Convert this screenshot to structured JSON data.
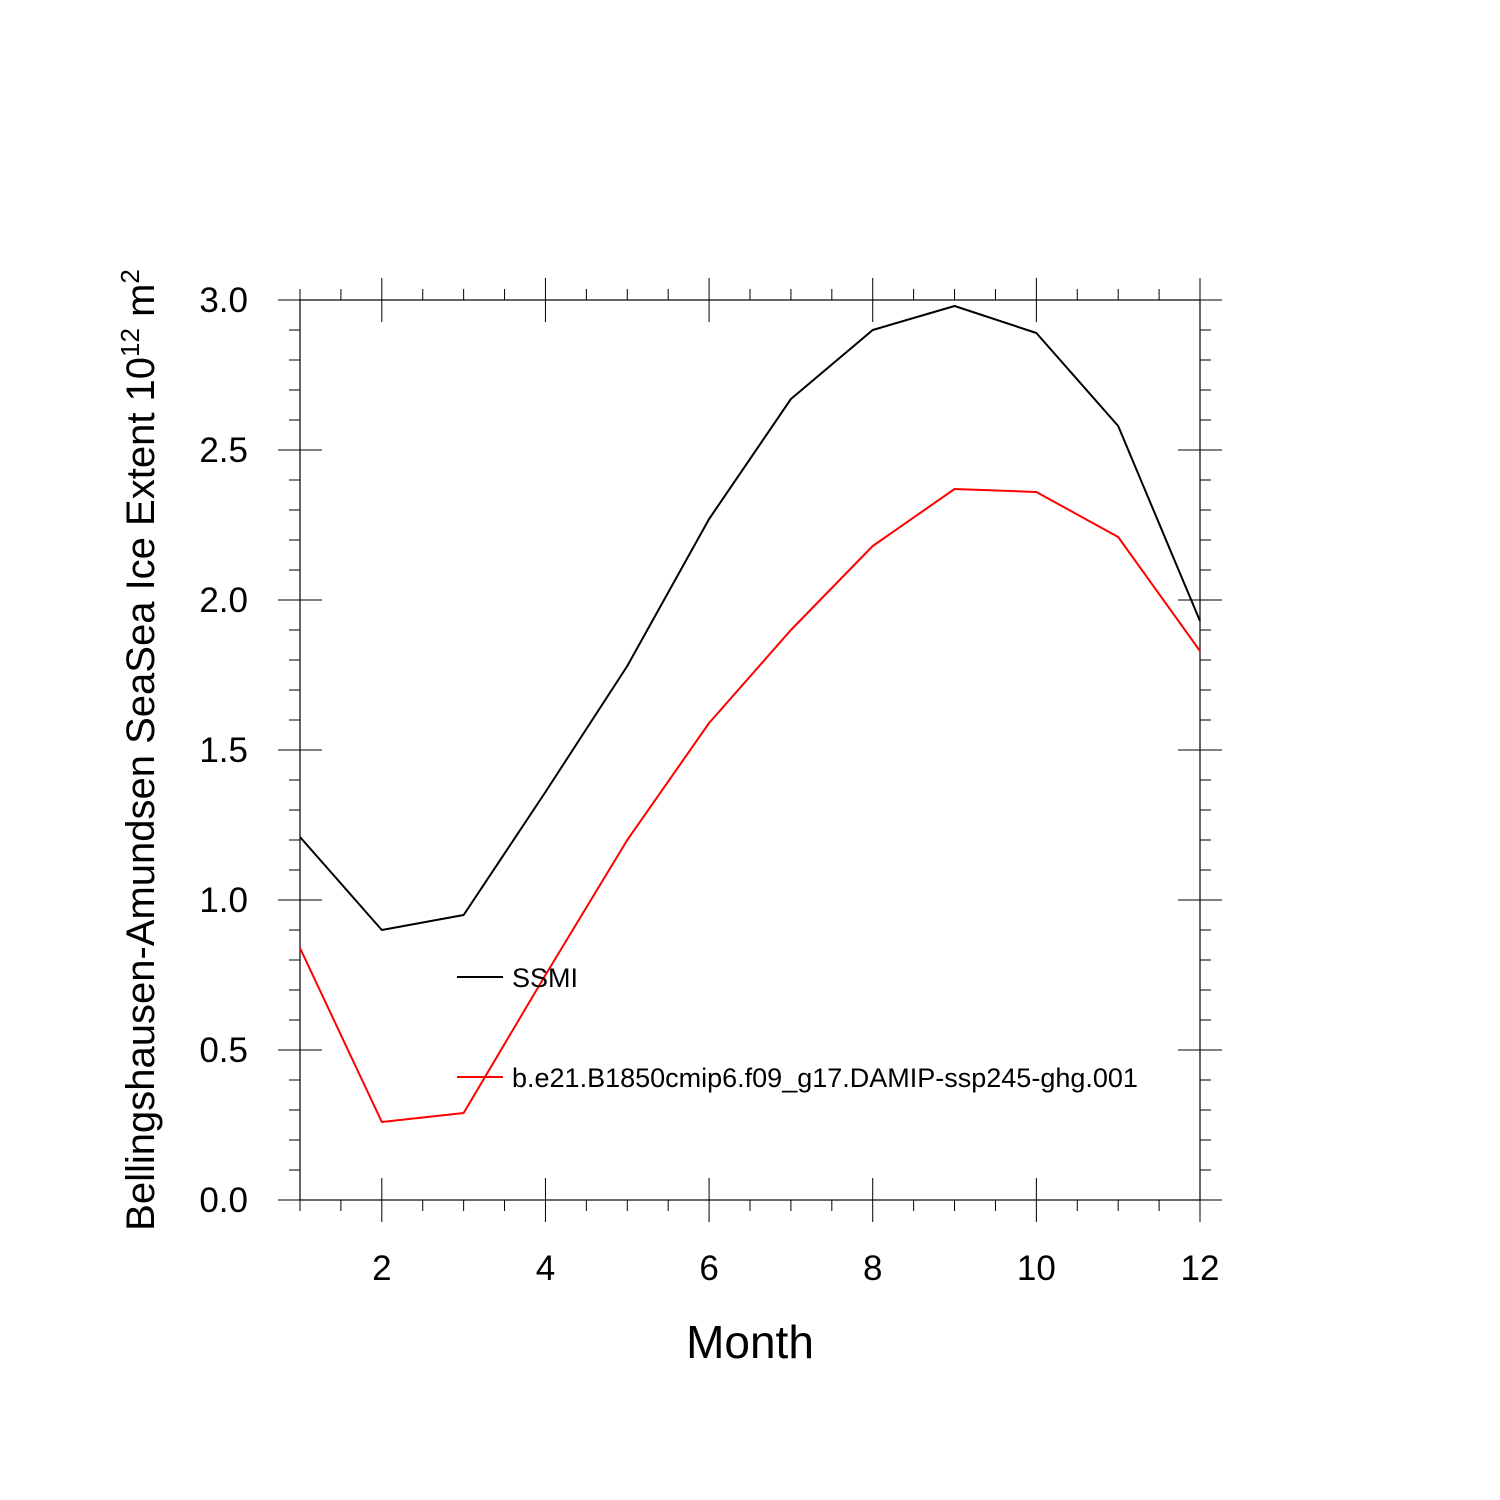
{
  "chart_data": {
    "type": "line",
    "title": "",
    "xlabel": "Month",
    "ylabel_main": "Bellingshausen-Amundsen SeaSea Ice Extent 10",
    "ylabel_exponent": "12",
    "ylabel_unit": " m",
    "ylabel_unit_exponent": "2",
    "xlim": [
      1,
      12
    ],
    "ylim": [
      0,
      3
    ],
    "x_ticks": [
      2,
      4,
      6,
      8,
      10,
      12
    ],
    "x_tick_labels": [
      "2",
      "4",
      "6",
      "8",
      "10",
      "12"
    ],
    "y_ticks": [
      0,
      0.5,
      1,
      1.5,
      2,
      2.5,
      3
    ],
    "y_tick_labels": [
      "0.0",
      "0.5",
      "1.0",
      "1.5",
      "2.0",
      "2.5",
      "3.0"
    ],
    "x": [
      1,
      2,
      3,
      4,
      5,
      6,
      7,
      8,
      9,
      10,
      11,
      12
    ],
    "series": [
      {
        "name": "SSMI",
        "color": "#000000",
        "values": [
          1.21,
          0.9,
          0.95,
          1.36,
          1.78,
          2.27,
          2.67,
          2.9,
          2.98,
          2.89,
          2.58,
          1.93
        ]
      },
      {
        "name": "b.e21.B1850cmip6.f09_g17.DAMIP-ssp245-ghg.001",
        "color": "#ff0000",
        "values": [
          0.84,
          0.26,
          0.29,
          0.75,
          1.2,
          1.59,
          1.9,
          2.18,
          2.37,
          2.36,
          2.21,
          1.83
        ]
      }
    ],
    "legend_position": "lower-left-inside"
  }
}
